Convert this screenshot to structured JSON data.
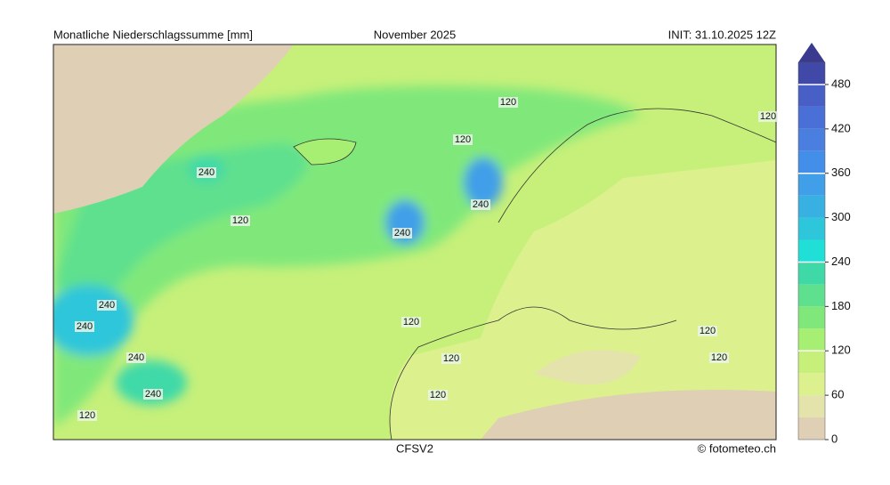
{
  "header": {
    "title": "Monatliche Niederschlagssumme [mm]",
    "period": "November 2025",
    "init": "INIT: 31.10.2025 12Z"
  },
  "footer": {
    "model": "CFSV2",
    "credit": "© fotometeo.ch"
  },
  "map": {
    "contour_labels": [
      240,
      120,
      120,
      120,
      240,
      240,
      240,
      240,
      240,
      240,
      120,
      120,
      120,
      120,
      120,
      120,
      120
    ]
  },
  "colorbar": {
    "levels": [
      0,
      30,
      60,
      90,
      120,
      150,
      180,
      210,
      240,
      270,
      300,
      330,
      360,
      390,
      420,
      450,
      480,
      510
    ],
    "colors": [
      "#dfcfb5",
      "#e4e3ab",
      "#dcf08e",
      "#c6f07a",
      "#a6ef72",
      "#80e87a",
      "#5fe08e",
      "#3fd9a8",
      "#1fdfd6",
      "#2ec6da",
      "#38b1e2",
      "#409fe8",
      "#428ee8",
      "#4a7fe0",
      "#4a6fd6",
      "#4860c6",
      "#4048a8"
    ],
    "extend_color": "#3a3a90",
    "ticks": [
      0,
      60,
      120,
      180,
      240,
      300,
      360,
      420,
      480
    ]
  }
}
